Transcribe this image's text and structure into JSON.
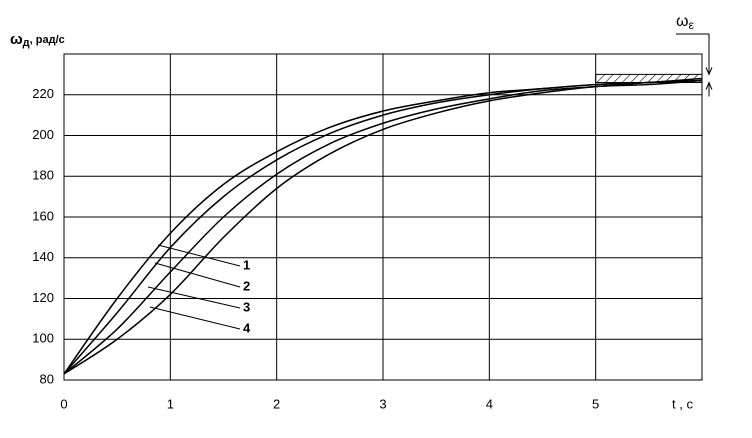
{
  "chart_data": {
    "type": "line",
    "y_label": {
      "symbol": "ω",
      "subscript": "д",
      "unit": ", рад/с"
    },
    "x_label": "t , c",
    "x": [
      0,
      0.5,
      1,
      1.5,
      2,
      2.5,
      3,
      3.5,
      4,
      4.5,
      5,
      5.5,
      6
    ],
    "series": [
      {
        "name": "1",
        "color": "#000000",
        "values": [
          83,
          120,
          152,
          176,
          192,
          204,
          212,
          217,
          221,
          223,
          225,
          226,
          228
        ]
      },
      {
        "name": "2",
        "color": "#000000",
        "values": [
          83,
          113,
          145,
          170,
          188,
          201,
          210,
          216,
          220,
          223,
          225,
          226,
          227
        ]
      },
      {
        "name": "3",
        "color": "#000000",
        "values": [
          83,
          105,
          133,
          160,
          181,
          196,
          206,
          213,
          218,
          222,
          224,
          226,
          227
        ]
      },
      {
        "name": "4",
        "color": "#000000",
        "values": [
          83,
          100,
          122,
          150,
          174,
          191,
          203,
          211,
          217,
          221,
          224,
          225,
          227
        ]
      }
    ],
    "xlim": [
      0,
      6
    ],
    "ylim": [
      80,
      240
    ],
    "xticks": [
      0,
      1,
      2,
      3,
      4,
      5
    ],
    "yticks": [
      80,
      100,
      120,
      140,
      160,
      180,
      200,
      220
    ],
    "grid": true,
    "tolerance_band": {
      "symbol": "ω",
      "subscript": "ε",
      "x": [
        5,
        6
      ],
      "y": [
        226,
        230
      ]
    }
  }
}
